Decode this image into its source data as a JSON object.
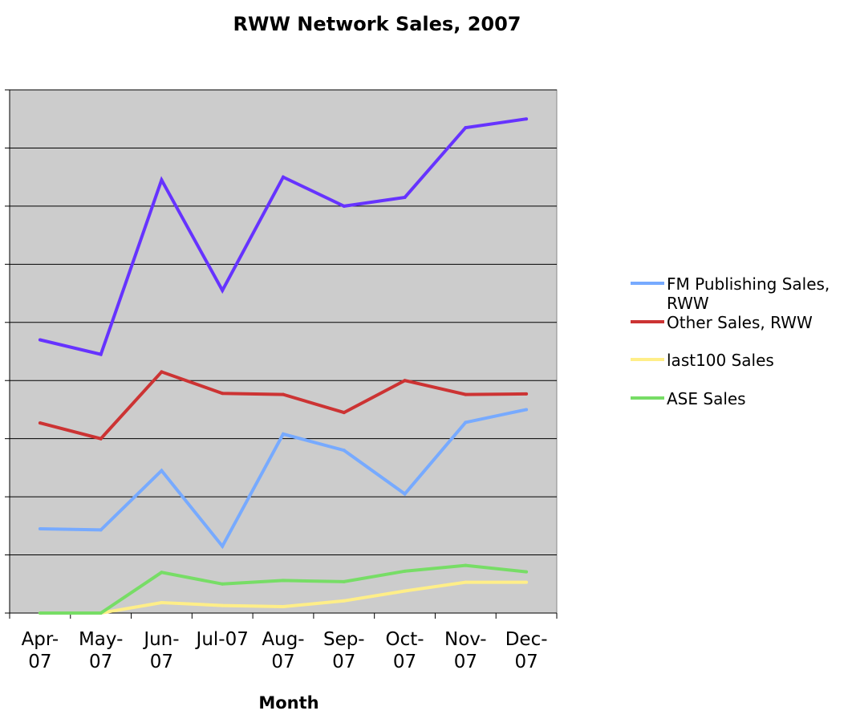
{
  "chart_data": {
    "type": "line",
    "title": "RWW Network Sales, 2007",
    "xlabel": "Month",
    "ylabel": "",
    "ylim": [
      0,
      9
    ],
    "grid": true,
    "legend_position": "right",
    "categories": [
      [
        "Apr-",
        "07"
      ],
      [
        "May-",
        "07"
      ],
      [
        "Jun-",
        "07"
      ],
      [
        "Jul-07",
        ""
      ],
      [
        "Aug-",
        "07"
      ],
      [
        "Sep-",
        "07"
      ],
      [
        "Oct-",
        "07"
      ],
      [
        "Nov-",
        "07"
      ],
      [
        "Dec-",
        "07"
      ]
    ],
    "series": [
      {
        "color": "#6633ff",
        "values": [
          4.7,
          4.45,
          7.45,
          5.55,
          7.5,
          7.0,
          7.15,
          8.35,
          8.5
        ]
      },
      {
        "name": "FM Publishing Sales, RWW",
        "legend_lines": [
          "FM Publishing Sales,",
          "RWW"
        ],
        "color": "#77aaff",
        "values": [
          1.45,
          1.43,
          2.45,
          1.15,
          3.08,
          2.8,
          2.05,
          3.28,
          3.5
        ]
      },
      {
        "name": "Other Sales, RWW",
        "legend_lines": [
          "Other Sales, RWW"
        ],
        "color": "#cc3333",
        "values": [
          3.27,
          3.0,
          4.15,
          3.78,
          3.76,
          3.45,
          4.0,
          3.76,
          3.77
        ]
      },
      {
        "name": "last100 Sales",
        "legend_lines": [
          "last100 Sales"
        ],
        "color": "#ffee88",
        "values": [
          0.0,
          0.0,
          0.18,
          0.13,
          0.11,
          0.21,
          0.38,
          0.53,
          0.53
        ]
      },
      {
        "name": "ASE Sales",
        "legend_lines": [
          "ASE Sales"
        ],
        "color": "#77dd66",
        "values": [
          0.0,
          0.0,
          0.7,
          0.5,
          0.56,
          0.54,
          0.72,
          0.82,
          0.71
        ]
      }
    ]
  }
}
